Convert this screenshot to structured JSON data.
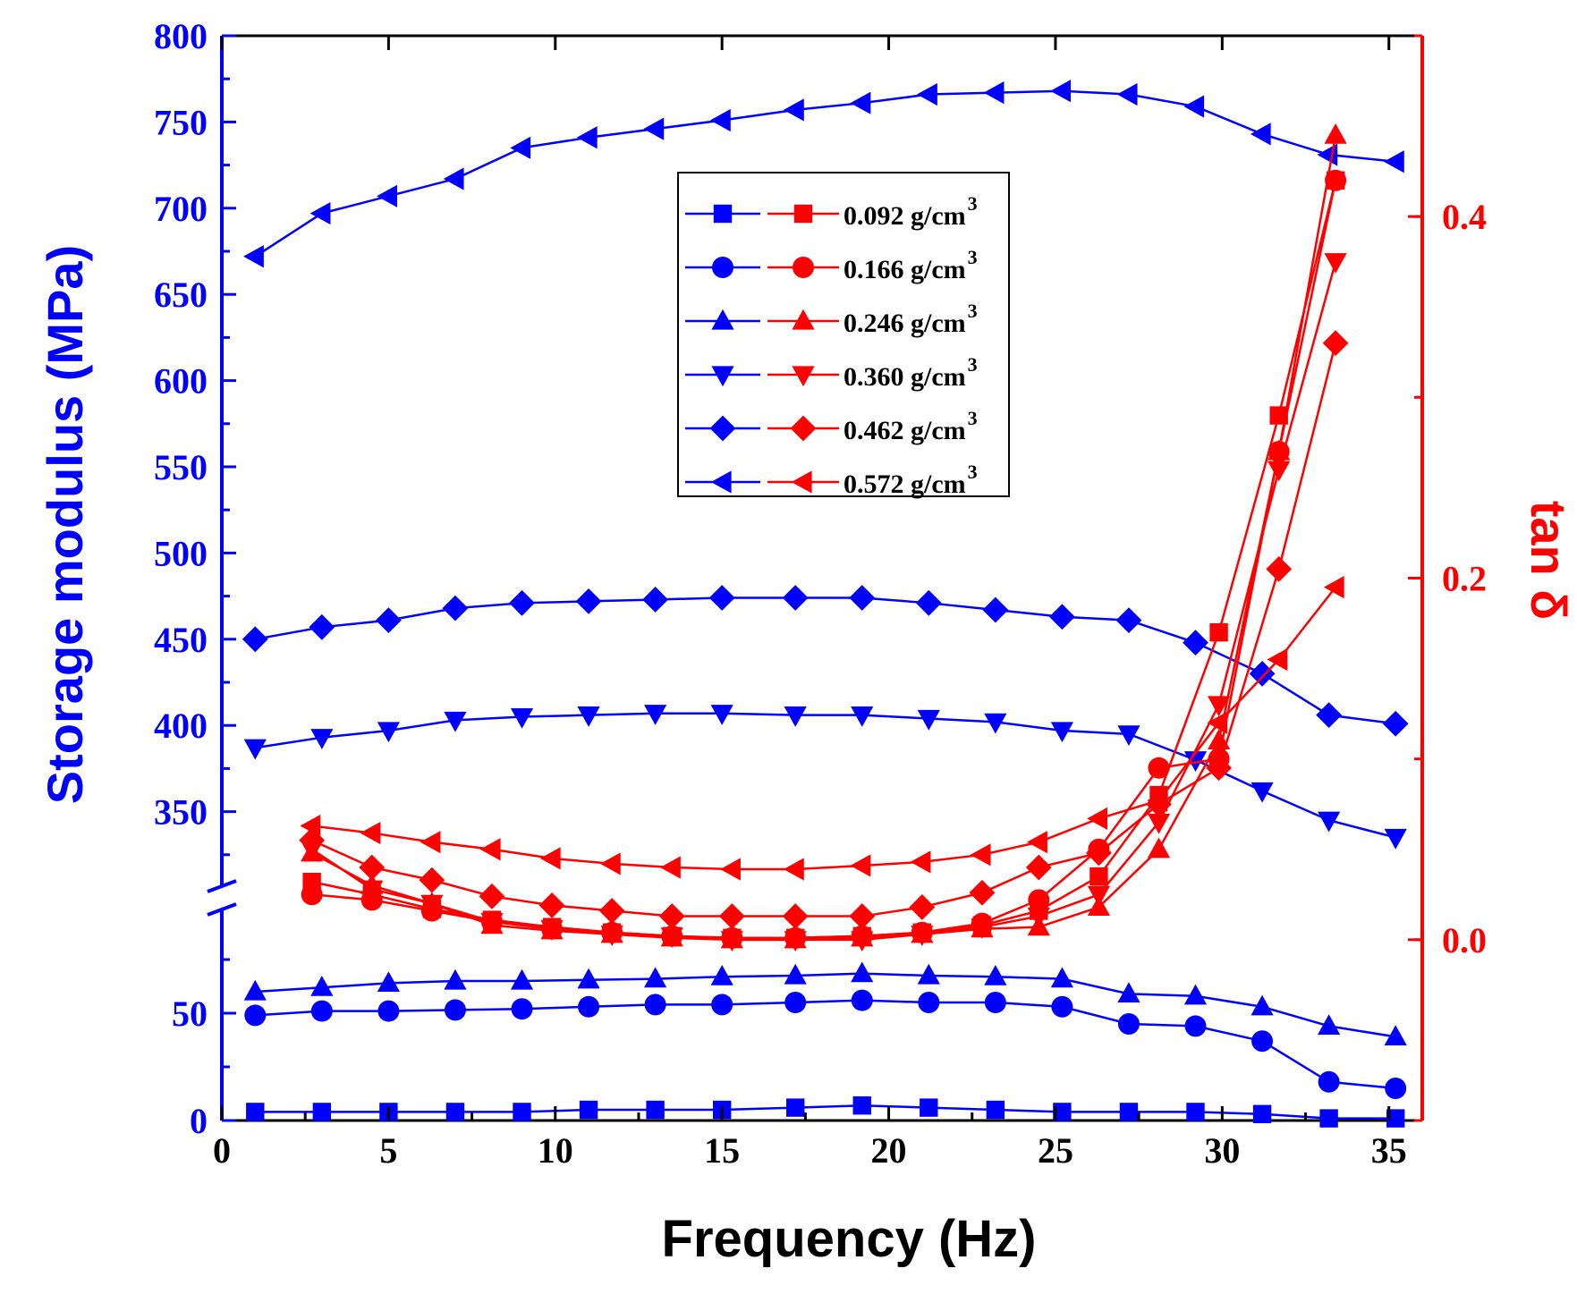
{
  "chart_data": {
    "type": "line",
    "xlabel": "Frequency (Hz)",
    "ylabel_left": "Storage modulus (MPa)",
    "ylabel_right": "tan δ",
    "xlim": [
      0,
      36
    ],
    "x_ticks": [
      "0",
      "5",
      "10",
      "15",
      "20",
      "25",
      "30",
      "35"
    ],
    "y_left_ticks_lower": [
      "0",
      "50"
    ],
    "y_left_ticks_upper": [
      "350",
      "400",
      "450",
      "500",
      "550",
      "600",
      "650",
      "700",
      "750",
      "800"
    ],
    "y_left_lower_range": [
      0,
      90
    ],
    "y_left_upper_range": [
      300,
      800
    ],
    "y_right_ticks": [
      "0.0",
      "0.2",
      "0.4"
    ],
    "y_right_range": [
      -0.1,
      0.5
    ],
    "colors": {
      "modulus": "#0000ff",
      "tan_delta": "#ff0000",
      "axis": "#000000"
    },
    "legend_position": "upper-center",
    "legend": [
      {
        "label": "0.092 g/cm",
        "sup": "3",
        "marker": "square"
      },
      {
        "label": "0.166 g/cm",
        "sup": "3",
        "marker": "circle"
      },
      {
        "label": "0.246 g/cm",
        "sup": "3",
        "marker": "triangle-up"
      },
      {
        "label": "0.360 g/cm",
        "sup": "3",
        "marker": "triangle-down"
      },
      {
        "label": "0.462 g/cm",
        "sup": "3",
        "marker": "diamond"
      },
      {
        "label": "0.572 g/cm",
        "sup": "3",
        "marker": "triangle-left"
      }
    ],
    "storage_modulus_x": [
      1,
      3,
      5,
      7,
      9,
      11,
      13,
      15,
      17.2,
      19.2,
      21.2,
      23.2,
      25.2,
      27.2,
      29.2,
      31.2,
      33.2,
      35.2
    ],
    "storage_modulus": [
      {
        "name": "0.092 g/cm3",
        "marker": "square",
        "values": [
          4,
          4,
          4,
          4,
          4,
          5,
          5,
          5,
          6,
          7,
          6,
          5,
          4,
          4,
          4,
          3,
          1,
          1
        ]
      },
      {
        "name": "0.166 g/cm3",
        "marker": "circle",
        "values": [
          49,
          51,
          51,
          51.5,
          52,
          53,
          54,
          54,
          55,
          56,
          55,
          55,
          53,
          45,
          44,
          37,
          18,
          15
        ]
      },
      {
        "name": "0.246 g/cm3",
        "marker": "triangle-up",
        "values": [
          60,
          62,
          64,
          65,
          65,
          65.5,
          66,
          67,
          67.5,
          68.5,
          67.5,
          67,
          66,
          59,
          58,
          53,
          44,
          39
        ]
      },
      {
        "name": "0.360 g/cm3",
        "marker": "triangle-down",
        "values": [
          387,
          393,
          397,
          403,
          405,
          406,
          407,
          407,
          406,
          406,
          404,
          402,
          397,
          395,
          380,
          362,
          345,
          335
        ]
      },
      {
        "name": "0.462 g/cm3",
        "marker": "diamond",
        "values": [
          450,
          457,
          461,
          468,
          471,
          472,
          473,
          474,
          474,
          474,
          471,
          467,
          463,
          461,
          448,
          430,
          406,
          401
        ]
      },
      {
        "name": "0.572 g/cm3",
        "marker": "triangle-left",
        "values": [
          672,
          697,
          707,
          717,
          735,
          741,
          746,
          751,
          757,
          761,
          766,
          767,
          768,
          766,
          759,
          743,
          731,
          727
        ]
      }
    ],
    "tan_delta_x": [
      2.7,
      4.5,
      6.3,
      8.1,
      9.9,
      11.7,
      13.5,
      15.3,
      17.2,
      19.2,
      21.0,
      22.8,
      24.5,
      26.3,
      28.1,
      29.9,
      31.7,
      33.4
    ],
    "tan_delta": [
      {
        "name": "0.092 g/cm3",
        "marker": "square",
        "values": [
          0.032,
          0.025,
          0.017,
          0.011,
          0.007,
          0.004,
          0.002,
          0.001,
          0.001,
          0.002,
          0.004,
          0.008,
          0.016,
          0.035,
          0.08,
          0.17,
          0.29,
          0.42
        ]
      },
      {
        "name": "0.166 g/cm3",
        "marker": "circle",
        "values": [
          0.025,
          0.022,
          0.016,
          0.01,
          0.006,
          0.004,
          0.002,
          0.001,
          0.001,
          0.002,
          0.004,
          0.009,
          0.022,
          0.05,
          0.095,
          0.1,
          0.27,
          0.42
        ]
      },
      {
        "name": "0.246 g/cm3",
        "marker": "triangle-up",
        "values": [
          0.048,
          0.03,
          0.02,
          0.008,
          0.005,
          0.003,
          0.001,
          0.0,
          0.0,
          0.001,
          0.003,
          0.006,
          0.007,
          0.018,
          0.05,
          0.11,
          0.27,
          0.445
        ]
      },
      {
        "name": "0.360 g/cm3",
        "marker": "triangle-down",
        "values": [
          0.05,
          0.028,
          0.02,
          0.01,
          0.006,
          0.003,
          0.002,
          0.0,
          0.0,
          0.0,
          0.003,
          0.007,
          0.013,
          0.025,
          0.065,
          0.13,
          0.26,
          0.375
        ]
      },
      {
        "name": "0.462 g/cm3",
        "marker": "diamond",
        "values": [
          0.055,
          0.04,
          0.033,
          0.024,
          0.019,
          0.016,
          0.013,
          0.013,
          0.013,
          0.013,
          0.018,
          0.026,
          0.04,
          0.048,
          0.075,
          0.095,
          0.205,
          0.33
        ]
      },
      {
        "name": "0.572 g/cm3",
        "marker": "triangle-left",
        "values": [
          0.063,
          0.059,
          0.054,
          0.05,
          0.045,
          0.042,
          0.04,
          0.039,
          0.039,
          0.041,
          0.043,
          0.047,
          0.054,
          0.067,
          0.077,
          0.12,
          0.155,
          0.195
        ]
      }
    ]
  }
}
